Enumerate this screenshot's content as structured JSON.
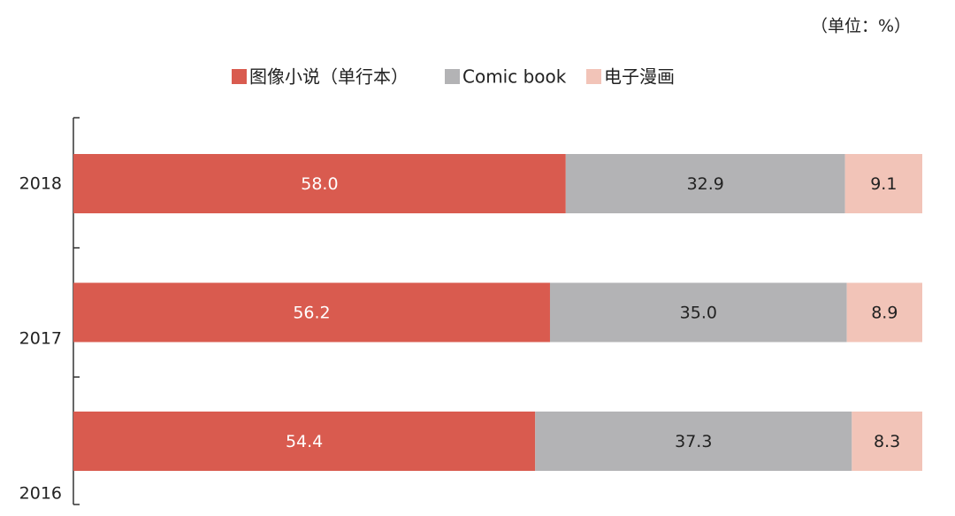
{
  "chart_data": {
    "type": "stacked-bar-horizontal",
    "unit_note": "（单位：%）",
    "categories": [
      "2018",
      "2017",
      "2016"
    ],
    "series": [
      {
        "name": "图像小说（单行本）",
        "color": "#d95b4f",
        "label_color": "#ffffff",
        "values": [
          58.0,
          56.2,
          54.4
        ],
        "value_labels": [
          "58.0",
          "56.2",
          "54.4"
        ]
      },
      {
        "name": "Comic book",
        "color": "#b3b3b5",
        "label_color": "#222222",
        "values": [
          32.9,
          35.0,
          37.3
        ],
        "value_labels": [
          "32.9",
          "35.0",
          "37.3"
        ]
      },
      {
        "name": "电子漫画",
        "color": "#f2c4b8",
        "label_color": "#222222",
        "values": [
          9.1,
          8.9,
          8.3
        ],
        "value_labels": [
          "9.1",
          "8.9",
          "8.3"
        ]
      }
    ]
  }
}
